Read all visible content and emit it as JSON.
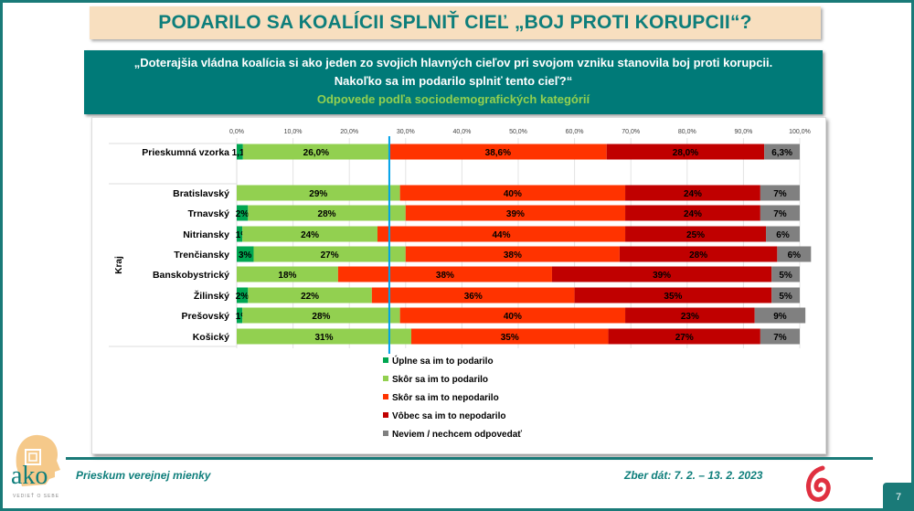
{
  "title": "PODARILO SA KOALÍCII SPLNIŤ CIEĽ „BOJ PROTI KORUPCII“?",
  "question": {
    "line1": "„Doterajšia vládna koalícia si ako jeden zo svojich hlavných cieľov pri svojom vzniku stanovila boj proti korupcii.",
    "line2": "Nakoľko sa im podarilo splniť tento cieľ?“",
    "subtitle": "Odpovede podľa sociodemografických kategórií"
  },
  "chart_data": {
    "type": "bar",
    "orientation": "horizontal",
    "stacked": "100%",
    "xlim": [
      0,
      100
    ],
    "xticks": [
      "0,0%",
      "10,0%",
      "20,0%",
      "30,0%",
      "40,0%",
      "50,0%",
      "60,0%",
      "70,0%",
      "80,0%",
      "90,0%",
      "100,0%"
    ],
    "grid": true,
    "legend_position": "bottom",
    "group_label": "Kraj",
    "reference_line": 27.1,
    "reference_line_color": "#00a2e8",
    "series": [
      {
        "name": "Úplne sa im to podarilo",
        "color": "#00a651"
      },
      {
        "name": "Skôr sa im to podarilo",
        "color": "#92d050"
      },
      {
        "name": "Skôr sa im to nepodarilo",
        "color": "#ff3300"
      },
      {
        "name": "Vôbec sa im to nepodarilo",
        "color": "#c00000"
      },
      {
        "name": "Neviem / nechcem odpovedať",
        "color": "#808080"
      }
    ],
    "rows": [
      {
        "category": "Prieskumná vzorka",
        "values": [
          1.1,
          26.0,
          38.6,
          28.0,
          6.3
        ],
        "labels": [
          "1,1%",
          "26,0%",
          "38,6%",
          "28,0%",
          "6,3%"
        ]
      },
      {
        "category": "Bratislavský",
        "group": "Kraj",
        "values": [
          0,
          29,
          40,
          24,
          7
        ],
        "labels": [
          "",
          "29%",
          "40%",
          "24%",
          "7%"
        ]
      },
      {
        "category": "Trnavský",
        "group": "Kraj",
        "values": [
          2,
          28,
          39,
          24,
          7
        ],
        "labels": [
          "2%",
          "28%",
          "39%",
          "24%",
          "7%"
        ]
      },
      {
        "category": "Nitriansky",
        "group": "Kraj",
        "values": [
          1,
          24,
          44,
          25,
          6
        ],
        "labels": [
          "1%",
          "24%",
          "44%",
          "25%",
          "6%"
        ]
      },
      {
        "category": "Trenčiansky",
        "group": "Kraj",
        "values": [
          3,
          27,
          38,
          28,
          6
        ],
        "labels": [
          "3%",
          "27%",
          "38%",
          "28%",
          "6%"
        ]
      },
      {
        "category": "Banskobystrický",
        "group": "Kraj",
        "values": [
          0,
          18,
          38,
          39,
          5
        ],
        "labels": [
          "",
          "18%",
          "38%",
          "39%",
          "5%"
        ]
      },
      {
        "category": "Žilinský",
        "group": "Kraj",
        "values": [
          2,
          22,
          36,
          35,
          5
        ],
        "labels": [
          "2%",
          "22%",
          "36%",
          "35%",
          "5%"
        ]
      },
      {
        "category": "Prešovský",
        "group": "Kraj",
        "values": [
          1,
          28,
          40,
          23,
          9
        ],
        "labels": [
          "1%",
          "28%",
          "40%",
          "23%",
          "9%"
        ]
      },
      {
        "category": "Košický",
        "group": "Kraj",
        "values": [
          0,
          31,
          35,
          27,
          7
        ],
        "labels": [
          "",
          "31%",
          "35%",
          "27%",
          "7%"
        ]
      }
    ]
  },
  "footer": {
    "left": "Prieskum verejnej mienky",
    "right": "Zber dát: 7. 2. – 13. 2. 2023",
    "page": "7",
    "logo_text": "ako",
    "logo_tagline": "VEDIEŤ O SEBE"
  }
}
